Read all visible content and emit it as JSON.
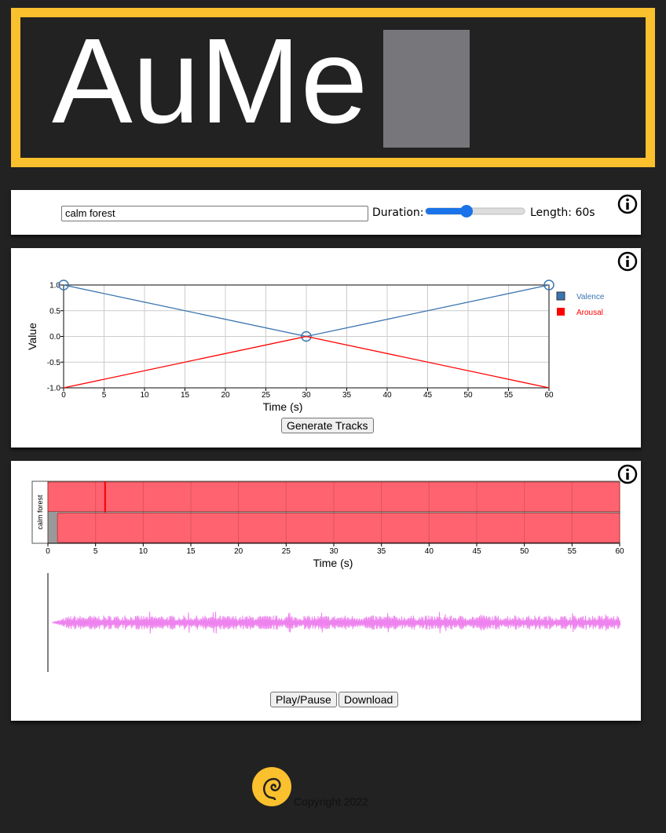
{
  "header": {
    "title": "AuMe"
  },
  "prompt_panel": {
    "prompt": "calm forest",
    "duration_label": "Duration:",
    "length_label": "Length: 60s"
  },
  "emotion_chart": {
    "type": "line",
    "x": [
      0,
      30,
      60
    ],
    "series": [
      {
        "name": "Valence",
        "color": "#3a75b0",
        "values": [
          1,
          0,
          1
        ],
        "markers": true
      },
      {
        "name": "Arousal",
        "color": "#ff0000",
        "values": [
          -1,
          0,
          -1
        ],
        "markers": false
      }
    ],
    "xlim": [
      0,
      60
    ],
    "ylim": [
      -1,
      1
    ],
    "xticks": [
      0,
      5,
      10,
      15,
      20,
      25,
      30,
      35,
      40,
      45,
      50,
      55,
      60
    ],
    "yticks": [
      {
        "value": 1,
        "label": "1.0"
      },
      {
        "value": 0.5,
        "label": "0.5"
      },
      {
        "value": 0,
        "label": "0.0"
      },
      {
        "value": -0.5,
        "label": "-0.5"
      },
      {
        "value": -1,
        "label": "-1.0"
      }
    ],
    "x_label": "Time (s)",
    "y_label": "Value",
    "grid": true
  },
  "generate_button": "Generate Tracks",
  "tracks": {
    "track_label": "calm forest",
    "xlim": [
      0,
      60
    ],
    "xticks": [
      0,
      5,
      10,
      15,
      20,
      25,
      30,
      35,
      40,
      45,
      50,
      55,
      60
    ],
    "x_label": "Time (s)",
    "segments": [
      {
        "start": 0,
        "end": 60
      },
      {
        "start": 1,
        "end": 60
      }
    ],
    "playhead": 6
  },
  "player_buttons": [
    "Play/Pause",
    "Download"
  ],
  "footer": {
    "copyright": "Copyright 2022"
  }
}
